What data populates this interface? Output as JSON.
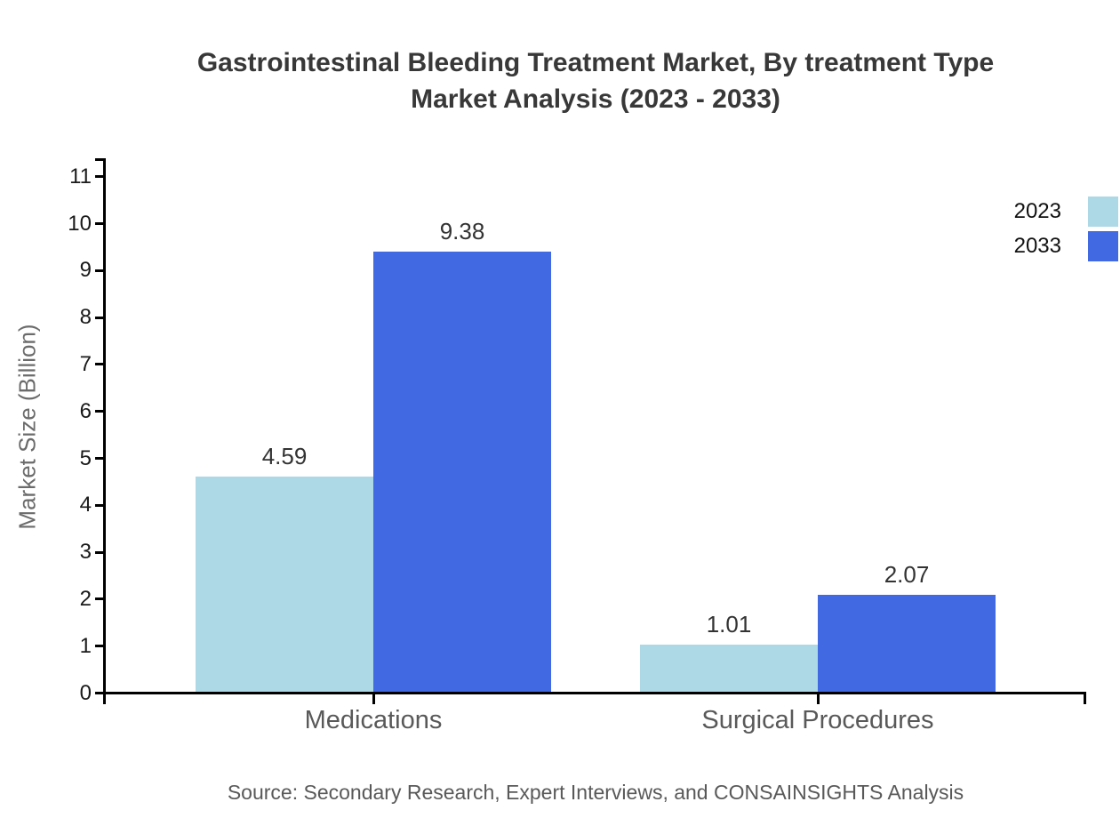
{
  "title": {
    "line1": "Gastrointestinal Bleeding Treatment Market, By treatment Type",
    "line2": "Market Analysis (2023 - 2033)"
  },
  "source_note": "Source: Secondary Research, Expert Interviews, and CONSAINSIGHTS Analysis",
  "colors": {
    "series_2023": "#ADD8E6",
    "series_2033": "#4169E1",
    "axis": "#000000",
    "title_text": "#383838",
    "value_label_text": "#333333",
    "muted_text": "#595959"
  },
  "chart_data": {
    "type": "bar",
    "title": "Gastrointestinal Bleeding Treatment Market, By treatment Type Market Analysis (2023 - 2033)",
    "categories": [
      "Medications",
      "Surgical Procedures"
    ],
    "series": [
      {
        "name": "2023",
        "color": "#ADD8E6",
        "values": [
          4.59,
          1.01
        ]
      },
      {
        "name": "2033",
        "color": "#4169E1",
        "values": [
          9.38,
          2.07
        ]
      }
    ],
    "xlabel": "",
    "ylabel": "Market Size (Billion)",
    "ylim": [
      0,
      11.25
    ],
    "y_ticks": [
      0,
      1,
      2,
      3,
      4,
      5,
      6,
      7,
      8,
      9,
      10,
      11
    ],
    "value_labels": [
      "4.59",
      "9.38",
      "1.01",
      "2.07"
    ],
    "grid": false,
    "legend_position": "top-right"
  }
}
